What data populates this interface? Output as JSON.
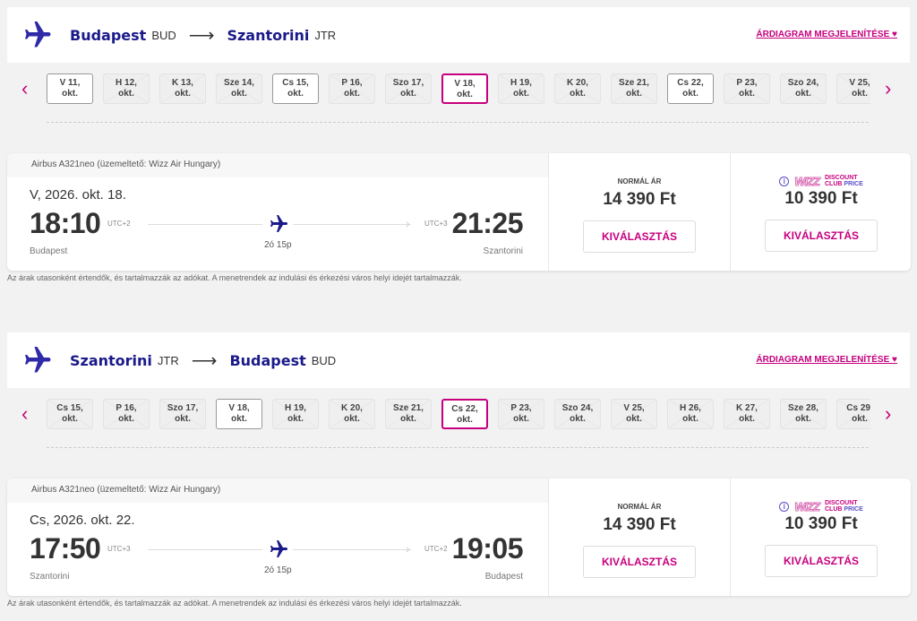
{
  "colors": {
    "accent": "#c6007e",
    "brand": "#1b1a8a"
  },
  "sections": [
    {
      "from_city": "Budapest",
      "from_code": "BUD",
      "to_city": "Szantorini",
      "to_code": "JTR",
      "chart_link": "ÁRDIAGRAM MEGJELENÍTÉSE ♥",
      "dates": [
        {
          "l1": "V 11,",
          "l2": "okt.",
          "state": "available"
        },
        {
          "l1": "H 12,",
          "l2": "okt.",
          "state": "unavailable"
        },
        {
          "l1": "K 13,",
          "l2": "okt.",
          "state": "unavailable"
        },
        {
          "l1": "Sze 14,",
          "l2": "okt.",
          "state": "unavailable"
        },
        {
          "l1": "Cs 15,",
          "l2": "okt.",
          "state": "available"
        },
        {
          "l1": "P 16,",
          "l2": "okt.",
          "state": "unavailable"
        },
        {
          "l1": "Szo 17,",
          "l2": "okt.",
          "state": "unavailable"
        },
        {
          "l1": "V 18,",
          "l2": "okt.",
          "state": "selected"
        },
        {
          "l1": "H 19,",
          "l2": "okt.",
          "state": "unavailable"
        },
        {
          "l1": "K 20,",
          "l2": "okt.",
          "state": "unavailable"
        },
        {
          "l1": "Sze 21,",
          "l2": "okt.",
          "state": "unavailable"
        },
        {
          "l1": "Cs 22,",
          "l2": "okt.",
          "state": "available"
        },
        {
          "l1": "P 23,",
          "l2": "okt.",
          "state": "unavailable"
        },
        {
          "l1": "Szo 24,",
          "l2": "okt.",
          "state": "unavailable"
        },
        {
          "l1": "V 25,",
          "l2": "okt.",
          "state": "unavailable"
        }
      ],
      "aircraft": "Airbus A321neo (üzemeltető: Wizz Air Hungary)",
      "flight_date": "V, 2026. okt. 18.",
      "dep_time": "18:10",
      "dep_utc": "UTC+2",
      "dep_city": "Budapest",
      "arr_time": "21:25",
      "arr_utc": "UTC+3",
      "arr_city": "Szantorini",
      "duration": "2ó 15p",
      "normal_label": "NORMÁL ÁR",
      "normal_price": "14 390 Ft",
      "club_logo": "WIZZ",
      "club_l1": "DISCOUNT",
      "club_l2a": "CLUB ",
      "club_l2b": "PRICE",
      "club_price": "10 390 Ft",
      "select_label": "KIVÁLASZTÁS",
      "note": "Az árak utasonként értendők, és tartalmazzák az adókat. A menetrendek az indulási és érkezési város helyi idejét tartalmazzák."
    },
    {
      "from_city": "Szantorini",
      "from_code": "JTR",
      "to_city": "Budapest",
      "to_code": "BUD",
      "chart_link": "ÁRDIAGRAM MEGJELENÍTÉSE ♥",
      "dates": [
        {
          "l1": "Cs 15,",
          "l2": "okt.",
          "state": "unavailable"
        },
        {
          "l1": "P 16,",
          "l2": "okt.",
          "state": "unavailable"
        },
        {
          "l1": "Szo 17,",
          "l2": "okt.",
          "state": "unavailable"
        },
        {
          "l1": "V 18,",
          "l2": "okt.",
          "state": "available"
        },
        {
          "l1": "H 19,",
          "l2": "okt.",
          "state": "unavailable"
        },
        {
          "l1": "K 20,",
          "l2": "okt.",
          "state": "unavailable"
        },
        {
          "l1": "Sze 21,",
          "l2": "okt.",
          "state": "unavailable"
        },
        {
          "l1": "Cs 22,",
          "l2": "okt.",
          "state": "selected"
        },
        {
          "l1": "P 23,",
          "l2": "okt.",
          "state": "unavailable"
        },
        {
          "l1": "Szo 24,",
          "l2": "okt.",
          "state": "unavailable"
        },
        {
          "l1": "V 25,",
          "l2": "okt.",
          "state": "unavailable"
        },
        {
          "l1": "H 26,",
          "l2": "okt.",
          "state": "unavailable"
        },
        {
          "l1": "K 27,",
          "l2": "okt.",
          "state": "unavailable"
        },
        {
          "l1": "Sze 28,",
          "l2": "okt.",
          "state": "unavailable"
        },
        {
          "l1": "Cs 29,",
          "l2": "okt.",
          "state": "unavailable"
        }
      ],
      "aircraft": "Airbus A321neo (üzemeltető: Wizz Air Hungary)",
      "flight_date": "Cs, 2026. okt. 22.",
      "dep_time": "17:50",
      "dep_utc": "UTC+3",
      "dep_city": "Szantorini",
      "arr_time": "19:05",
      "arr_utc": "UTC+2",
      "arr_city": "Budapest",
      "duration": "2ó 15p",
      "normal_label": "NORMÁL ÁR",
      "normal_price": "14 390 Ft",
      "club_logo": "WIZZ",
      "club_l1": "DISCOUNT",
      "club_l2a": "CLUB ",
      "club_l2b": "PRICE",
      "club_price": "10 390 Ft",
      "select_label": "KIVÁLASZTÁS",
      "note": "Az árak utasonként értendők, és tartalmazzák az adókat. A menetrendek az indulási és érkezési város helyi idejét tartalmazzák."
    }
  ]
}
